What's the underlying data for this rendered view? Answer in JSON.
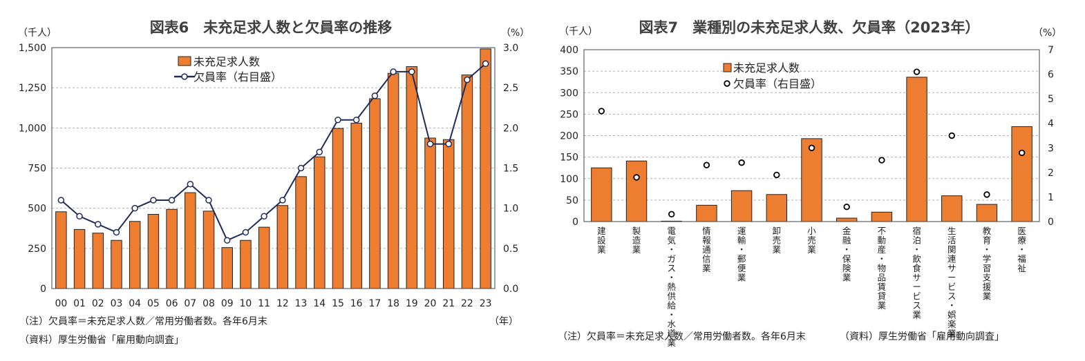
{
  "chart_data": [
    {
      "type": "bar",
      "title": "図表6　未充足求人数と欠員率の推移",
      "left_unit": "（千人）",
      "right_unit": "（%）",
      "x_unit": "（年）",
      "categories": [
        "00",
        "01",
        "02",
        "03",
        "04",
        "05",
        "06",
        "07",
        "08",
        "09",
        "10",
        "11",
        "12",
        "13",
        "14",
        "15",
        "16",
        "17",
        "18",
        "19",
        "20",
        "21",
        "22",
        "23"
      ],
      "series": [
        {
          "name": "未充足求人数",
          "kind": "bar",
          "axis": "left",
          "values": [
            478,
            368,
            345,
            300,
            418,
            462,
            493,
            597,
            482,
            255,
            300,
            382,
            517,
            697,
            820,
            997,
            1030,
            1182,
            1340,
            1382,
            937,
            927,
            1330,
            1492
          ]
        },
        {
          "name": "欠員率（右目盛）",
          "kind": "line",
          "axis": "right",
          "values": [
            1.1,
            0.9,
            0.8,
            0.7,
            1.0,
            1.1,
            1.1,
            1.3,
            1.1,
            0.6,
            0.7,
            0.9,
            1.1,
            1.5,
            1.7,
            2.1,
            2.1,
            2.4,
            2.7,
            2.7,
            1.8,
            1.8,
            2.6,
            2.8
          ]
        }
      ],
      "left_axis": {
        "range": [
          0,
          1500
        ],
        "ticks": [
          0,
          250,
          500,
          750,
          1000,
          1250,
          1500
        ],
        "tick_labels": [
          "0",
          "250",
          "500",
          "750",
          "1,000",
          "1,250",
          "1,500"
        ]
      },
      "right_axis": {
        "range": [
          0,
          3.0
        ],
        "ticks": [
          0,
          0.5,
          1.0,
          1.5,
          2.0,
          2.5,
          3.0
        ],
        "tick_labels": [
          "0.0",
          "0.5",
          "1.0",
          "1.5",
          "2.0",
          "2.5",
          "3.0"
        ]
      },
      "grid": "horizontal dashed",
      "legend": "top-left",
      "notes": [
        "（注）欠員率＝未充足求人数／常用労働者数。各年6月末",
        "（資料）厚生労働省「雇用動向調査」"
      ],
      "colors": {
        "bar": "#ED7D31",
        "bar_edge": "#222222",
        "line": "#1F2A5A"
      }
    },
    {
      "type": "bar",
      "title": "図表7　業種別の未充足求人数、欠員率（2023年）",
      "left_unit": "（千人）",
      "right_unit": "（%）",
      "categories": [
        "建設業",
        "製造業",
        "電気・ガス・熱供給・水道業",
        "情報通信業",
        "運輸・郵便業",
        "卸売業",
        "小売業",
        "金融・保険業",
        "不動産・物品賃貸業",
        "宿泊・飲食サービス業",
        "生活関連サービス・娯楽業",
        "教育・学習支援業",
        "医療・福祉"
      ],
      "series": [
        {
          "name": "未充足求人数",
          "kind": "bar",
          "axis": "left",
          "values": [
            125,
            141,
            1,
            38,
            72,
            63,
            193,
            8,
            22,
            336,
            60,
            40,
            221
          ]
        },
        {
          "name": "欠員率（右目盛）",
          "kind": "scatter",
          "axis": "right",
          "values": [
            4.5,
            1.8,
            0.3,
            2.3,
            2.4,
            1.9,
            3.0,
            0.6,
            2.5,
            6.1,
            3.5,
            1.1,
            2.8
          ]
        }
      ],
      "left_axis": {
        "range": [
          0,
          400
        ],
        "ticks": [
          0,
          50,
          100,
          150,
          200,
          250,
          300,
          350,
          400
        ],
        "tick_labels": [
          "0",
          "50",
          "100",
          "150",
          "200",
          "250",
          "300",
          "350",
          "400"
        ]
      },
      "right_axis": {
        "range": [
          0,
          7
        ],
        "ticks": [
          0,
          1,
          2,
          3,
          4,
          5,
          6,
          7
        ],
        "tick_labels": [
          "0",
          "1",
          "2",
          "3",
          "4",
          "5",
          "6",
          "7"
        ]
      },
      "grid": "horizontal dashed",
      "legend": "top-left",
      "notes": [
        "（注）欠員率＝未充足求人数／常用労働者数。各年6月末",
        "（資料）厚生労働省「雇用動向調査」"
      ],
      "colors": {
        "bar": "#ED7D31",
        "bar_edge": "#222222",
        "marker_edge": "#000000"
      }
    }
  ]
}
